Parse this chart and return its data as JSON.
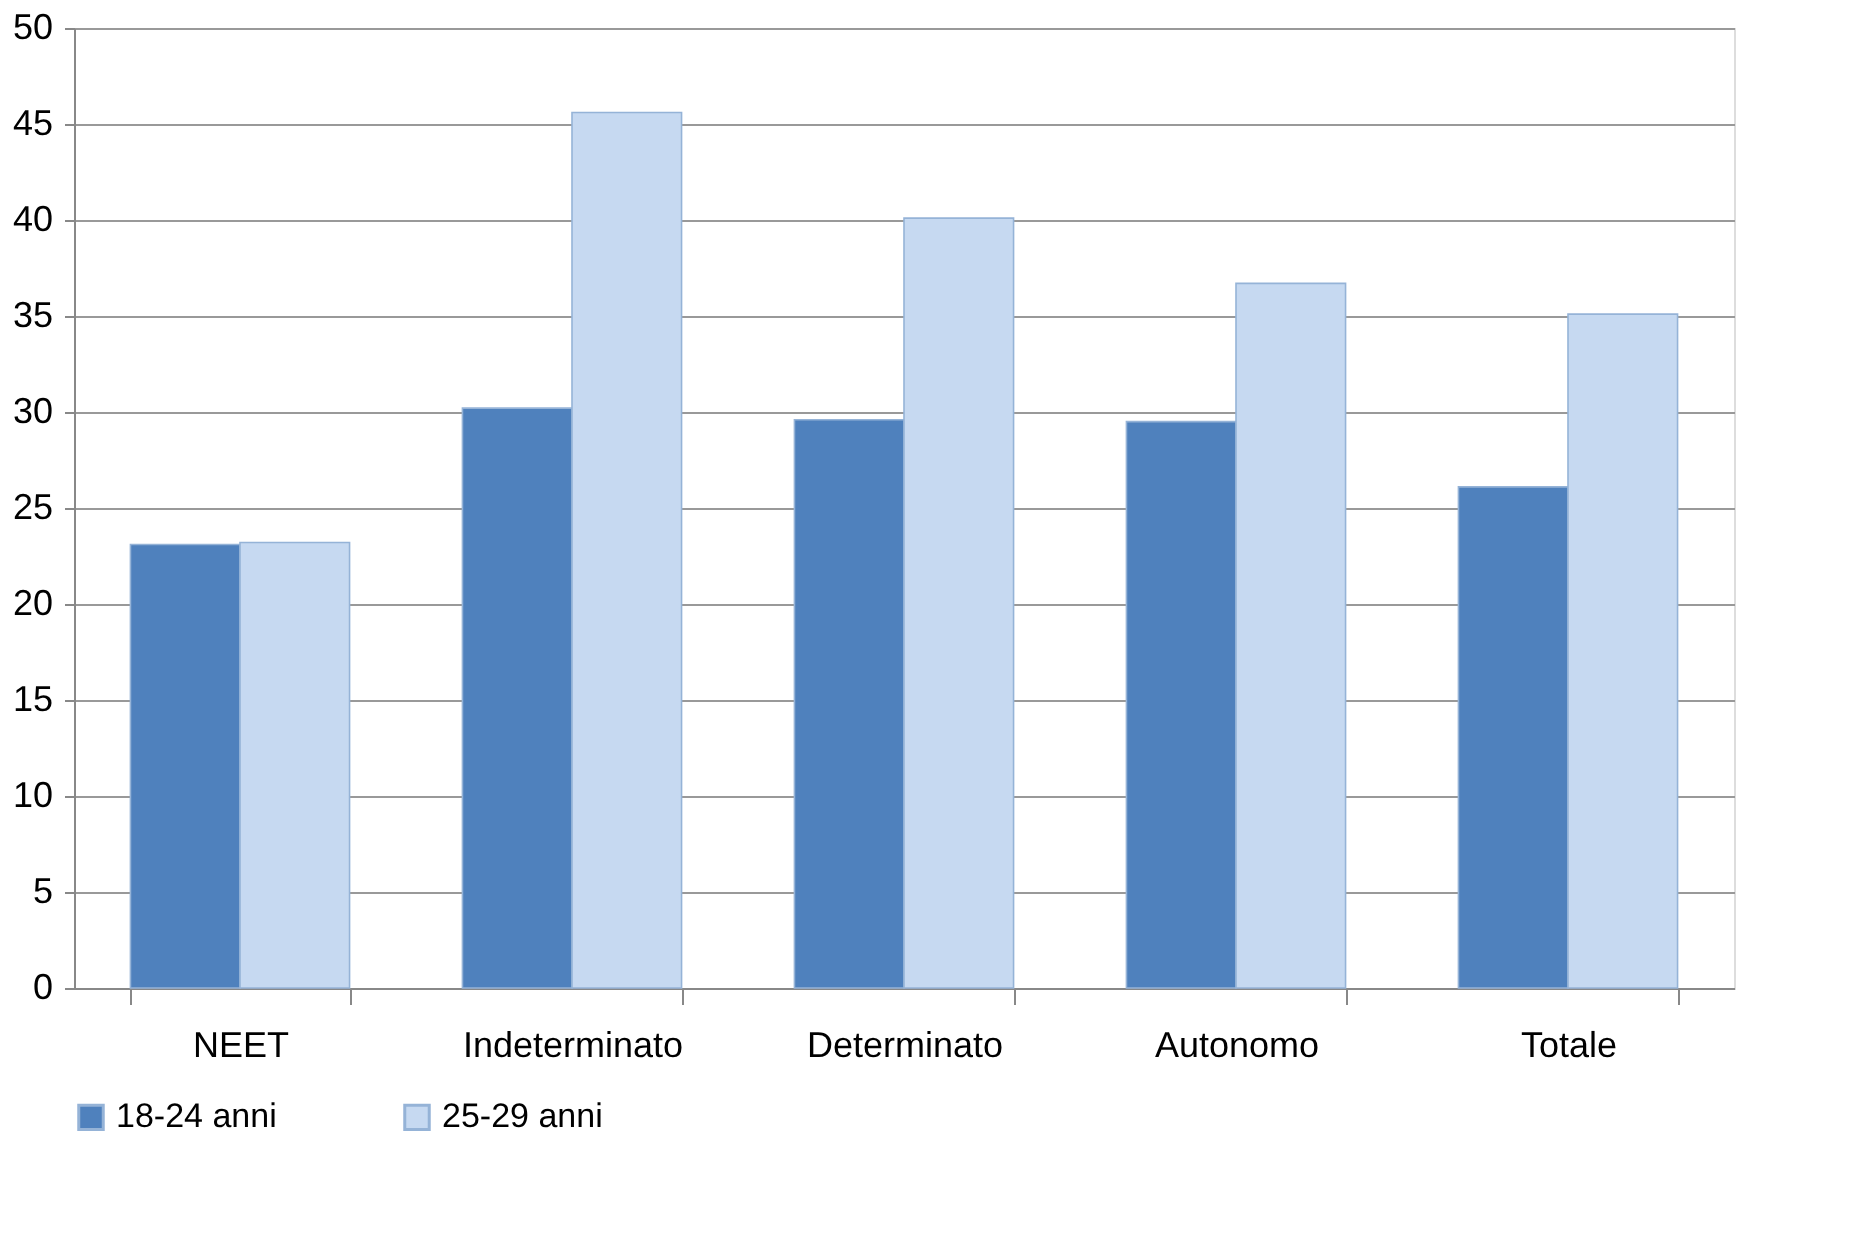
{
  "chart_data": {
    "type": "bar",
    "categories": [
      "NEET",
      "Indeterminato",
      "Determinato",
      "Autonomo",
      "Totale"
    ],
    "series": [
      {
        "name": "18-24 anni",
        "color": "#4f81bd",
        "values": [
          23.1,
          30.2,
          29.6,
          29.5,
          26.1
        ]
      },
      {
        "name": "25-29 anni",
        "color": "#c6d9f1",
        "values": [
          23.2,
          45.6,
          40.1,
          36.7,
          35.1
        ]
      }
    ],
    "ylim": [
      0,
      50
    ],
    "yticks": [
      0,
      5,
      10,
      15,
      20,
      25,
      30,
      35,
      40,
      45,
      50
    ],
    "grid": "y",
    "legend": "bottom"
  }
}
